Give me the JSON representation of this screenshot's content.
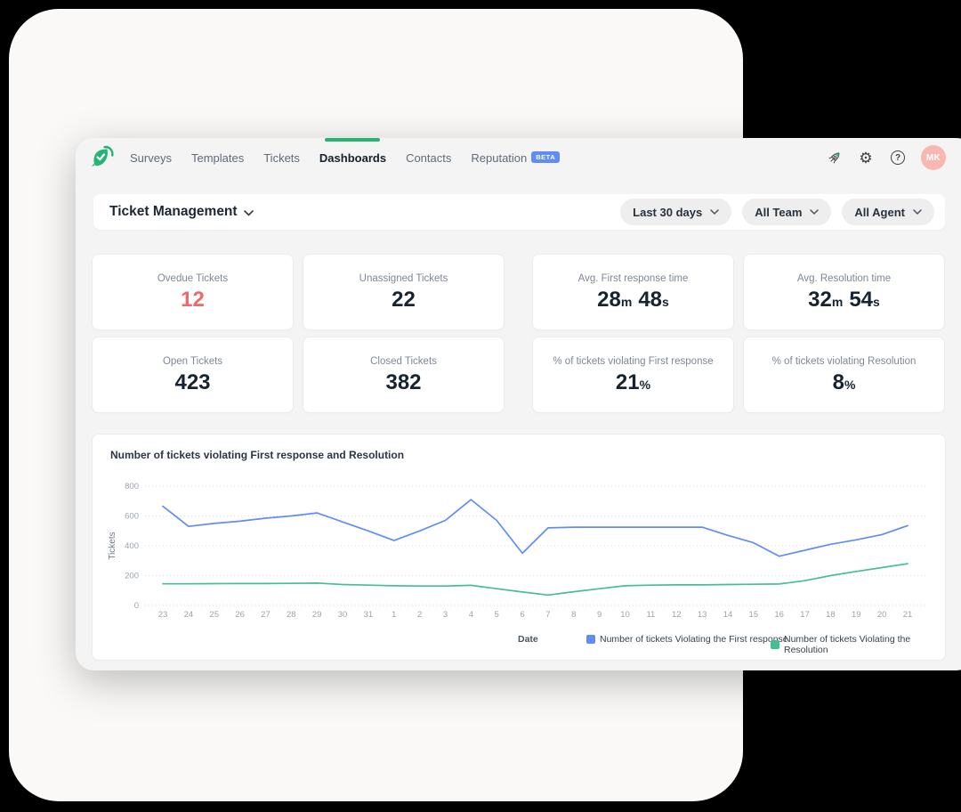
{
  "nav": {
    "tabs": [
      "Surveys",
      "Templates",
      "Tickets",
      "Dashboards",
      "Contacts",
      "Reputation"
    ],
    "active_tab": "Dashboards",
    "beta_badge": "BETA",
    "avatar_initials": "MK"
  },
  "toolbar": {
    "title": "Ticket Management",
    "filters": [
      {
        "label": "Last 30 days"
      },
      {
        "label": "All Team"
      },
      {
        "label": "All Agent"
      }
    ]
  },
  "stats": [
    {
      "label": "Ovedue Tickets",
      "parts": [
        {
          "v": "12"
        }
      ],
      "value_color": "#ee6a6a"
    },
    {
      "label": "Unassigned Tickets",
      "parts": [
        {
          "v": "22"
        }
      ]
    },
    {
      "label": "Avg. First response time",
      "parts": [
        {
          "v": "28",
          "u": "m"
        },
        {
          "v": "48",
          "u": "s"
        }
      ]
    },
    {
      "label": "Avg. Resolution time",
      "parts": [
        {
          "v": "32",
          "u": "m"
        },
        {
          "v": "54",
          "u": "s"
        }
      ]
    },
    {
      "label": "Open Tickets",
      "parts": [
        {
          "v": "423"
        }
      ]
    },
    {
      "label": "Closed Tickets",
      "parts": [
        {
          "v": "382"
        }
      ]
    },
    {
      "label": "% of tickets violating First response",
      "parts": [
        {
          "v": "21",
          "u": "%"
        }
      ]
    },
    {
      "label": "% of tickets violating Resolution",
      "parts": [
        {
          "v": "8",
          "u": "%"
        }
      ]
    }
  ],
  "chart_data": {
    "type": "line",
    "title": "Number of tickets violating First response and Resolution",
    "xlabel": "Date",
    "ylabel": "Tickets",
    "ylim": [
      0,
      800
    ],
    "yticks": [
      0,
      200,
      400,
      600,
      800
    ],
    "grid": "dotted-horizontal",
    "legend_position": "bottom",
    "categories": [
      "23",
      "24",
      "25",
      "26",
      "27",
      "28",
      "29",
      "30",
      "31",
      "1",
      "2",
      "3",
      "4",
      "5",
      "6",
      "7",
      "8",
      "9",
      "10",
      "11",
      "12",
      "13",
      "14",
      "15",
      "16",
      "17",
      "18",
      "19",
      "20",
      "21"
    ],
    "series": [
      {
        "name": "Number of tickets Violating the First response",
        "color": "#5f8df5",
        "values": [
          665,
          530,
          550,
          565,
          585,
          600,
          620,
          560,
          500,
          435,
          500,
          570,
          710,
          570,
          350,
          520,
          525,
          525,
          525,
          525,
          525,
          525,
          470,
          420,
          330,
          370,
          410,
          440,
          475,
          535
        ]
      },
      {
        "name": "Number of tickets Violating the Resolution",
        "color": "#45bf92",
        "values": [
          145,
          145,
          146,
          147,
          147,
          148,
          150,
          140,
          136,
          132,
          130,
          130,
          135,
          112,
          90,
          70,
          92,
          112,
          132,
          136,
          138,
          138,
          140,
          142,
          144,
          166,
          200,
          228,
          254,
          280
        ]
      }
    ]
  },
  "colors": {
    "accent_green": "#25b474",
    "badge_blue": "#5f8cf8",
    "alert_red": "#ee6a6a",
    "avatar_pink": "#f8b7b0"
  }
}
